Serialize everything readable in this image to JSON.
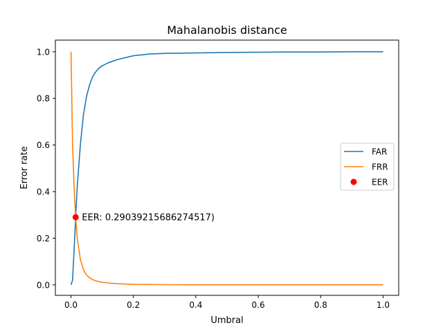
{
  "chart_data": {
    "type": "line",
    "title": "Mahalanobis distance",
    "xlabel": "Umbral",
    "ylabel": "Error rate",
    "xlim": [
      -0.05,
      1.05
    ],
    "ylim": [
      -0.045,
      1.05
    ],
    "xticks": [
      "0.0",
      "0.2",
      "0.4",
      "0.6",
      "0.8",
      "1.0"
    ],
    "yticks": [
      "0.0",
      "0.2",
      "0.4",
      "0.6",
      "0.8",
      "1.0"
    ],
    "grid": false,
    "legend_position": "center-right",
    "series": [
      {
        "name": "FAR",
        "color": "#1f77b4",
        "x": [
          0,
          0.005,
          0.01,
          0.015,
          0.02,
          0.03,
          0.04,
          0.05,
          0.06,
          0.07,
          0.08,
          0.09,
          0.1,
          0.12,
          0.15,
          0.2,
          0.25,
          0.3,
          0.4,
          0.5,
          0.6,
          0.7,
          0.8,
          0.9,
          1.0
        ],
        "y": [
          0,
          0.02,
          0.15,
          0.29,
          0.42,
          0.6,
          0.73,
          0.81,
          0.86,
          0.895,
          0.915,
          0.93,
          0.94,
          0.953,
          0.967,
          0.983,
          0.99,
          0.993,
          0.995,
          0.997,
          0.998,
          0.999,
          0.999,
          1.0,
          1.0
        ]
      },
      {
        "name": "FRR",
        "color": "#ff7f0e",
        "x": [
          0,
          0.002,
          0.005,
          0.01,
          0.015,
          0.02,
          0.03,
          0.04,
          0.05,
          0.06,
          0.07,
          0.08,
          0.1,
          0.12,
          0.15,
          0.2,
          0.3,
          0.4,
          0.5,
          0.6,
          0.7,
          0.8,
          0.9,
          1.0
        ],
        "y": [
          1.0,
          0.85,
          0.6,
          0.42,
          0.29,
          0.2,
          0.11,
          0.065,
          0.042,
          0.03,
          0.022,
          0.017,
          0.011,
          0.008,
          0.005,
          0.002,
          0.001,
          0.0,
          0.0,
          0.0,
          0.0,
          0.0,
          0.0,
          0.0
        ]
      },
      {
        "name": "EER",
        "color": "#ff0000",
        "marker": "point",
        "x": [
          0.015
        ],
        "y": [
          0.29039215686274517
        ]
      }
    ],
    "annotations": [
      {
        "text": "EER: 0.29039215686274517)",
        "x": 0.015,
        "y": 0.29039215686274517
      }
    ]
  }
}
